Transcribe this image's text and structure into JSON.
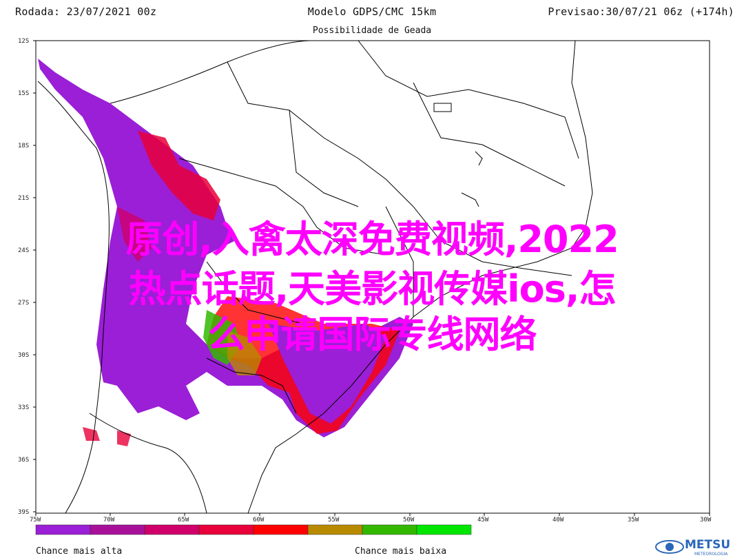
{
  "header": {
    "run": "Rodada: 23/07/2021 00z",
    "model": "Modelo GDPS/CMC 15km",
    "forecast": "Previsao:30/07/21 06z (+174h)"
  },
  "subtitle": "Possibilidade de Geada",
  "axes": {
    "lat_labels": [
      "12S",
      "15S",
      "18S",
      "21S",
      "24S",
      "27S",
      "30S",
      "33S",
      "36S",
      "39S"
    ],
    "lon_labels": [
      "75W",
      "70W",
      "65W",
      "60W",
      "55W",
      "50W",
      "45W",
      "40W",
      "35W",
      "30W"
    ]
  },
  "legend": {
    "colors": [
      "#9a1fd6",
      "#a8109a",
      "#d0006a",
      "#e8003a",
      "#ff0000",
      "#b88a00",
      "#33b800",
      "#00e600"
    ],
    "low_label": "Chance mais alta",
    "high_label": "Chance mais baixa"
  },
  "overlay_text": {
    "line1": "原创,入禽太深免费视频,2022",
    "line2": "热点话题,天美影视传媒ios,怎",
    "line3": "么申请国际专线网络"
  },
  "logo": {
    "name": "METSUL",
    "tagline": "METEOROLOGIA",
    "color": "#2a66b8"
  }
}
